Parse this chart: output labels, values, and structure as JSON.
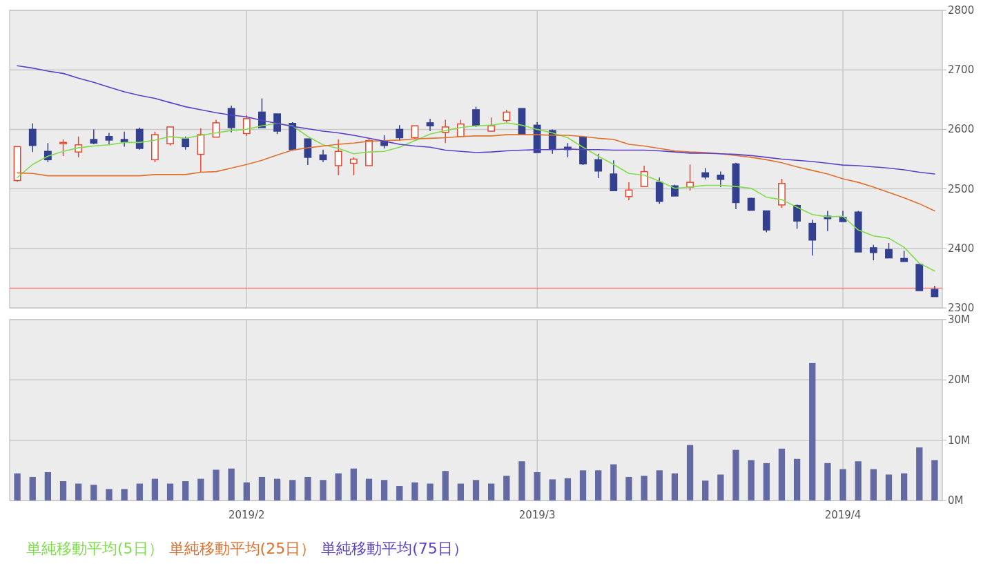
{
  "chart_data": [
    {
      "type": "candlestick",
      "categories": [
        null,
        null,
        null,
        null,
        null,
        null,
        null,
        null,
        null,
        null,
        null,
        null,
        null,
        null,
        null,
        "2019/2",
        null,
        null,
        null,
        null,
        null,
        null,
        null,
        null,
        null,
        null,
        null,
        null,
        null,
        null,
        null,
        null,
        null,
        null,
        "2019/3",
        null,
        null,
        null,
        null,
        null,
        null,
        null,
        null,
        null,
        null,
        null,
        null,
        null,
        null,
        null,
        null,
        null,
        null,
        null,
        "2019/4",
        null,
        null,
        null,
        null,
        null,
        null
      ],
      "ohlc": [
        [
          2514,
          2571,
          2512,
          2571
        ],
        [
          2600,
          2610,
          2562,
          2573
        ],
        [
          2563,
          2577,
          2545,
          2549
        ],
        [
          2576,
          2583,
          2555,
          2578
        ],
        [
          2562,
          2588,
          2553,
          2574
        ],
        [
          2583,
          2600,
          2575,
          2577
        ],
        [
          2588,
          2594,
          2575,
          2582
        ],
        [
          2583,
          2596,
          2571,
          2579
        ],
        [
          2600,
          2603,
          2566,
          2568
        ],
        [
          2549,
          2596,
          2545,
          2591
        ],
        [
          2576,
          2604,
          2573,
          2604
        ],
        [
          2584,
          2588,
          2566,
          2571
        ],
        [
          2558,
          2602,
          2528,
          2591
        ],
        [
          2587,
          2616,
          2587,
          2611
        ],
        [
          2635,
          2640,
          2595,
          2603
        ],
        [
          2593,
          2624,
          2589,
          2618
        ],
        [
          2629,
          2652,
          2603,
          2603
        ],
        [
          2626,
          2626,
          2592,
          2597
        ],
        [
          2610,
          2612,
          2566,
          2566
        ],
        [
          2584,
          2584,
          2540,
          2553
        ],
        [
          2557,
          2566,
          2545,
          2549
        ],
        [
          2539,
          2583,
          2523,
          2563
        ],
        [
          2543,
          2553,
          2523,
          2550
        ],
        [
          2539,
          2584,
          2539,
          2581
        ],
        [
          2580,
          2590,
          2568,
          2573
        ],
        [
          2600,
          2607,
          2581,
          2586
        ],
        [
          2586,
          2606,
          2583,
          2606
        ],
        [
          2611,
          2618,
          2597,
          2606
        ],
        [
          2595,
          2616,
          2577,
          2604
        ],
        [
          2588,
          2616,
          2588,
          2609
        ],
        [
          2633,
          2638,
          2604,
          2606
        ],
        [
          2597,
          2620,
          2597,
          2606
        ],
        [
          2615,
          2633,
          2612,
          2629
        ],
        [
          2635,
          2635,
          2592,
          2592
        ],
        [
          2607,
          2612,
          2561,
          2561
        ],
        [
          2598,
          2600,
          2559,
          2567
        ],
        [
          2570,
          2577,
          2553,
          2566
        ],
        [
          2587,
          2587,
          2540,
          2542
        ],
        [
          2549,
          2559,
          2518,
          2530
        ],
        [
          2525,
          2548,
          2497,
          2497
        ],
        [
          2487,
          2511,
          2481,
          2498
        ],
        [
          2504,
          2539,
          2504,
          2529
        ],
        [
          2511,
          2519,
          2475,
          2479
        ],
        [
          2505,
          2507,
          2488,
          2488
        ],
        [
          2503,
          2541,
          2497,
          2511
        ],
        [
          2527,
          2535,
          2516,
          2520
        ],
        [
          2523,
          2529,
          2503,
          2516
        ],
        [
          2542,
          2544,
          2466,
          2477
        ],
        [
          2484,
          2485,
          2464,
          2464
        ],
        [
          2463,
          2463,
          2427,
          2431
        ],
        [
          2473,
          2517,
          2468,
          2509
        ],
        [
          2472,
          2474,
          2433,
          2446
        ],
        [
          2442,
          2448,
          2388,
          2414
        ],
        [
          2454,
          2463,
          2429,
          2450
        ],
        [
          2452,
          2463,
          2445,
          2445
        ],
        [
          2461,
          2463,
          2394,
          2394
        ],
        [
          2401,
          2406,
          2380,
          2393
        ],
        [
          2398,
          2409,
          2384,
          2384
        ],
        [
          2383,
          2396,
          2378,
          2378
        ],
        [
          2373,
          2373,
          2329,
          2329
        ],
        [
          2331,
          2337,
          2319,
          2319
        ]
      ],
      "series": [
        {
          "name": "単純移動平均(5日）",
          "type": "line",
          "color": "#7fdc4b",
          "values": [
            2519,
            2541,
            2555,
            2563,
            2569,
            2572,
            2574,
            2578,
            2578,
            2582,
            2588,
            2585,
            2590,
            2594,
            2598,
            2600,
            2606,
            2610,
            2606,
            2588,
            2574,
            2568,
            2559,
            2562,
            2563,
            2570,
            2581,
            2592,
            2598,
            2603,
            2606,
            2607,
            2611,
            2607,
            2600,
            2594,
            2586,
            2570,
            2555,
            2541,
            2526,
            2523,
            2513,
            2501,
            2503,
            2506,
            2506,
            2504,
            2501,
            2486,
            2482,
            2469,
            2457,
            2453,
            2454,
            2431,
            2421,
            2417,
            2402,
            2375,
            2362
          ]
        },
        {
          "name": "単純移動平均(25日）",
          "type": "line",
          "color": "#e0702c",
          "values": [
            2527,
            2526,
            2522,
            2522,
            2522,
            2522,
            2522,
            2522,
            2522,
            2524,
            2524,
            2524,
            2528,
            2529,
            2535,
            2541,
            2548,
            2557,
            2565,
            2569,
            2572,
            2575,
            2577,
            2580,
            2581,
            2582,
            2584,
            2585,
            2586,
            2588,
            2589,
            2589,
            2591,
            2591,
            2591,
            2590,
            2590,
            2588,
            2585,
            2583,
            2575,
            2572,
            2568,
            2564,
            2562,
            2561,
            2559,
            2556,
            2553,
            2549,
            2544,
            2537,
            2531,
            2525,
            2517,
            2511,
            2503,
            2494,
            2485,
            2475,
            2463
          ]
        },
        {
          "name": "単純移動平均(75日）",
          "type": "line",
          "color": "#5a3fc8",
          "values": [
            2707,
            2703,
            2698,
            2694,
            2686,
            2679,
            2671,
            2663,
            2657,
            2652,
            2645,
            2638,
            2633,
            2628,
            2624,
            2621,
            2615,
            2610,
            2605,
            2601,
            2597,
            2594,
            2590,
            2585,
            2580,
            2575,
            2572,
            2570,
            2565,
            2563,
            2561,
            2562,
            2564,
            2565,
            2566,
            2566,
            2567,
            2566,
            2566,
            2565,
            2565,
            2565,
            2564,
            2562,
            2560,
            2560,
            2559,
            2558,
            2556,
            2553,
            2550,
            2548,
            2546,
            2543,
            2540,
            2539,
            2537,
            2535,
            2532,
            2528,
            2525
          ]
        }
      ],
      "ref_lines": [
        {
          "axis": "y",
          "value": 2333,
          "color": "#f08080"
        }
      ],
      "ylim": [
        2300,
        2800
      ],
      "yticks": [
        2300,
        2400,
        2500,
        2600,
        2700,
        2800
      ],
      "grid": true,
      "legend": "bottom",
      "tick_labels": "y"
    },
    {
      "type": "bar",
      "categories": [
        null,
        null,
        null,
        null,
        null,
        null,
        null,
        null,
        null,
        null,
        null,
        null,
        null,
        null,
        null,
        "2019/2",
        null,
        null,
        null,
        null,
        null,
        null,
        null,
        null,
        null,
        null,
        null,
        null,
        null,
        null,
        null,
        null,
        null,
        null,
        "2019/3",
        null,
        null,
        null,
        null,
        null,
        null,
        null,
        null,
        null,
        null,
        null,
        null,
        null,
        null,
        null,
        null,
        null,
        null,
        null,
        "2019/4",
        null,
        null,
        null,
        null,
        null,
        null
      ],
      "values": [
        4.5,
        3.9,
        4.7,
        3.2,
        2.8,
        2.6,
        1.9,
        1.9,
        2.8,
        3.6,
        2.8,
        3.2,
        3.6,
        5.1,
        5.3,
        3.0,
        3.9,
        3.6,
        3.4,
        3.9,
        3.4,
        4.5,
        5.3,
        3.6,
        3.4,
        2.4,
        3.0,
        2.8,
        4.9,
        2.8,
        3.4,
        2.8,
        4.1,
        6.5,
        4.7,
        3.5,
        3.7,
        5.0,
        5.0,
        6.0,
        3.9,
        4.1,
        5.0,
        4.5,
        9.2,
        3.3,
        4.3,
        8.4,
        6.7,
        6.2,
        8.6,
        6.9,
        22.8,
        6.2,
        5.2,
        6.5,
        5.2,
        4.3,
        4.5,
        8.8,
        6.7
      ],
      "color": "#6269a3",
      "ylim": [
        0,
        30
      ],
      "yticks": [
        {
          "value": 0,
          "label": "0M"
        },
        {
          "value": 10,
          "label": "10M"
        },
        {
          "value": 20,
          "label": "20M"
        },
        {
          "value": 30,
          "label": "30M"
        }
      ],
      "grid": true
    }
  ]
}
